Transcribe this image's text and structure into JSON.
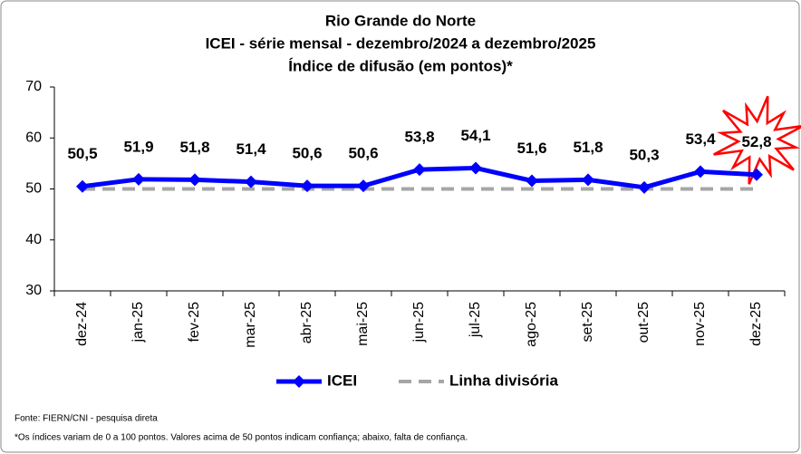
{
  "chart_data": {
    "type": "line",
    "title": [
      "Rio Grande do Norte",
      "ICEI - série mensal - dezembro/2024 a dezembro/2025",
      "Índice de difusão (em pontos)*"
    ],
    "categories": [
      "dez-24",
      "jan-25",
      "fev-25",
      "mar-25",
      "abr-25",
      "mai-25",
      "jun-25",
      "jul-25",
      "ago-25",
      "set-25",
      "out-25",
      "nov-25",
      "dez-25"
    ],
    "series": [
      {
        "name": "ICEI",
        "color": "#0000ff",
        "marker": "diamond",
        "line_style": "solid",
        "values": [
          50.5,
          51.9,
          51.8,
          51.4,
          50.6,
          50.6,
          53.8,
          54.1,
          51.6,
          51.8,
          50.3,
          53.4,
          52.8
        ],
        "value_labels": [
          "50,5",
          "51,9",
          "51,8",
          "51,4",
          "50,6",
          "50,6",
          "53,8",
          "54,1",
          "51,6",
          "51,8",
          "50,3",
          "53,4",
          "52,8"
        ]
      },
      {
        "name": "Linha divisória",
        "color": "#a6a6a6",
        "marker": "none",
        "line_style": "dashed",
        "values": [
          50,
          50,
          50,
          50,
          50,
          50,
          50,
          50,
          50,
          50,
          50,
          50,
          50
        ]
      }
    ],
    "ylim": [
      30,
      70
    ],
    "yticks": [
      30,
      40,
      50,
      60,
      70
    ],
    "grid": false,
    "legend": "bottom",
    "footnotes": [
      "Fonte: FIERN/CNI - pesquisa direta",
      "*Os índices variam de 0 a 100 pontos. Valores acima de 50 pontos indicam confiança; abaixo, falta de confiança."
    ]
  }
}
